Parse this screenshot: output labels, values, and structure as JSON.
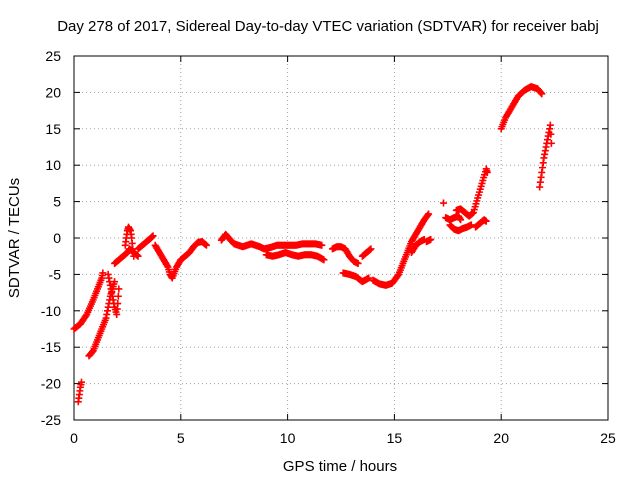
{
  "chart_data": {
    "type": "scatter",
    "title": "Day 278 of 2017, Sidereal Day-to-day VTEC variation (SDTVAR) for receiver babj",
    "xlabel": "GPS time / hours",
    "ylabel": "SDTVAR / TECUs",
    "xlim": [
      0,
      25
    ],
    "ylim": [
      -25,
      25
    ],
    "xticks": [
      "0",
      "5",
      "10",
      "15",
      "20",
      "25"
    ],
    "yticks": [
      "25",
      "20",
      "15",
      "10",
      "5",
      "0",
      "-5",
      "-10",
      "-15",
      "-20",
      "-25"
    ],
    "grid": true,
    "marker": "plus",
    "color": "#ff0000",
    "series": [
      {
        "name": "babj",
        "segments": [
          [
            [
              0.0,
              -12.5
            ],
            [
              0.3,
              -11.8
            ],
            [
              0.6,
              -10.5
            ],
            [
              0.9,
              -8.5
            ],
            [
              1.1,
              -7.0
            ],
            [
              1.3,
              -5.5
            ],
            [
              1.35,
              -4.8
            ]
          ],
          [
            [
              0.2,
              -22.5
            ],
            [
              0.25,
              -21.5
            ],
            [
              0.3,
              -20.5
            ],
            [
              0.35,
              -19.8
            ]
          ],
          [
            [
              0.7,
              -16.2
            ],
            [
              0.9,
              -15.5
            ],
            [
              1.1,
              -14.0
            ],
            [
              1.3,
              -12.5
            ],
            [
              1.5,
              -11.0
            ],
            [
              1.6,
              -9.5
            ],
            [
              1.7,
              -8.0
            ],
            [
              1.8,
              -7.0
            ],
            [
              1.9,
              -6.0
            ]
          ],
          [
            [
              1.6,
              -5.0
            ],
            [
              1.7,
              -6.5
            ],
            [
              1.8,
              -8.0
            ],
            [
              1.9,
              -9.5
            ],
            [
              2.0,
              -10.5
            ],
            [
              2.05,
              -9.0
            ],
            [
              2.1,
              -7.0
            ]
          ],
          [
            [
              1.9,
              -3.5
            ],
            [
              2.1,
              -3.0
            ],
            [
              2.3,
              -2.5
            ],
            [
              2.5,
              -2.0
            ],
            [
              2.6,
              -1.5
            ],
            [
              2.8,
              -2.0
            ],
            [
              3.0,
              -2.5
            ]
          ],
          [
            [
              2.4,
              -1.0
            ],
            [
              2.45,
              0.0
            ],
            [
              2.5,
              1.0
            ],
            [
              2.55,
              1.5
            ],
            [
              2.65,
              1.0
            ],
            [
              2.7,
              0.0
            ],
            [
              2.75,
              -1.5
            ],
            [
              2.8,
              -2.5
            ]
          ],
          [
            [
              3.0,
              -1.5
            ],
            [
              3.2,
              -1.0
            ],
            [
              3.4,
              -0.5
            ],
            [
              3.6,
              0.0
            ],
            [
              3.7,
              0.3
            ]
          ],
          [
            [
              3.8,
              -1.0
            ],
            [
              4.0,
              -2.0
            ],
            [
              4.2,
              -3.0
            ],
            [
              4.4,
              -4.0
            ],
            [
              4.5,
              -5.0
            ],
            [
              4.6,
              -5.5
            ],
            [
              4.8,
              -4.0
            ],
            [
              5.0,
              -3.0
            ],
            [
              5.2,
              -2.5
            ],
            [
              5.4,
              -2.0
            ],
            [
              5.6,
              -1.2
            ],
            [
              5.8,
              -0.6
            ],
            [
              6.0,
              -0.5
            ],
            [
              6.2,
              -1.0
            ]
          ],
          [
            [
              6.9,
              -0.3
            ],
            [
              7.1,
              0.5
            ],
            [
              7.3,
              -0.2
            ],
            [
              7.5,
              -0.8
            ],
            [
              7.7,
              -1.0
            ],
            [
              7.9,
              -1.2
            ],
            [
              8.1,
              -1.0
            ],
            [
              8.3,
              -0.8
            ],
            [
              8.5,
              -1.0
            ],
            [
              8.7,
              -1.2
            ],
            [
              8.9,
              -1.5
            ],
            [
              9.2,
              -1.3
            ],
            [
              9.5,
              -1.0
            ],
            [
              9.8,
              -1.0
            ],
            [
              10.1,
              -1.0
            ],
            [
              10.4,
              -1.0
            ],
            [
              10.7,
              -0.8
            ],
            [
              11.0,
              -0.8
            ],
            [
              11.3,
              -0.8
            ],
            [
              11.6,
              -1.0
            ]
          ],
          [
            [
              9.0,
              -2.3
            ],
            [
              9.3,
              -2.5
            ],
            [
              9.6,
              -2.3
            ],
            [
              9.9,
              -2.0
            ],
            [
              10.2,
              -2.3
            ],
            [
              10.5,
              -2.5
            ],
            [
              10.8,
              -2.3
            ],
            [
              11.1,
              -2.3
            ],
            [
              11.4,
              -2.5
            ],
            [
              11.7,
              -3.0
            ]
          ],
          [
            [
              12.1,
              -1.5
            ],
            [
              12.3,
              -1.2
            ],
            [
              12.5,
              -1.2
            ],
            [
              12.7,
              -1.5
            ],
            [
              12.9,
              -2.5
            ],
            [
              13.1,
              -3.2
            ],
            [
              13.3,
              -3.5
            ]
          ],
          [
            [
              12.6,
              -4.8
            ],
            [
              12.9,
              -5.0
            ],
            [
              13.2,
              -5.3
            ],
            [
              13.5,
              -6.0
            ],
            [
              13.8,
              -5.5
            ]
          ],
          [
            [
              13.5,
              -2.5
            ],
            [
              13.7,
              -2.0
            ],
            [
              13.9,
              -1.5
            ]
          ],
          [
            [
              14.0,
              -5.8
            ],
            [
              14.3,
              -6.3
            ],
            [
              14.6,
              -6.5
            ],
            [
              14.9,
              -6.2
            ],
            [
              15.2,
              -5.0
            ],
            [
              15.4,
              -3.5
            ],
            [
              15.6,
              -2.0
            ],
            [
              15.8,
              -0.5
            ],
            [
              16.0,
              0.5
            ],
            [
              16.2,
              1.5
            ],
            [
              16.4,
              2.5
            ],
            [
              16.6,
              3.3
            ]
          ],
          [
            [
              15.8,
              -2.0
            ],
            [
              16.0,
              -1.0
            ],
            [
              16.2,
              -0.5
            ],
            [
              16.4,
              -0.2
            ]
          ],
          [
            [
              16.5,
              -0.5
            ],
            [
              16.7,
              -0.2
            ]
          ],
          [
            [
              17.3,
              4.8
            ]
          ],
          [
            [
              17.4,
              2.8
            ],
            [
              17.6,
              2.5
            ],
            [
              17.8,
              2.8
            ],
            [
              18.0,
              3.0
            ],
            [
              18.1,
              2.5
            ]
          ],
          [
            [
              17.6,
              1.8
            ],
            [
              17.8,
              1.2
            ],
            [
              18.0,
              1.0
            ],
            [
              18.2,
              1.3
            ],
            [
              18.4,
              1.5
            ],
            [
              18.6,
              1.8
            ]
          ],
          [
            [
              17.9,
              3.8
            ],
            [
              18.1,
              4.0
            ],
            [
              18.3,
              3.5
            ],
            [
              18.5,
              3.0
            ],
            [
              18.7,
              3.5
            ],
            [
              18.9,
              5.5
            ],
            [
              19.1,
              7.5
            ],
            [
              19.3,
              9.5
            ],
            [
              19.35,
              9.0
            ]
          ],
          [
            [
              18.8,
              1.5
            ],
            [
              19.0,
              2.0
            ],
            [
              19.2,
              2.5
            ],
            [
              19.3,
              2.3
            ]
          ],
          [
            [
              20.0,
              15.0
            ],
            [
              20.2,
              16.5
            ],
            [
              20.5,
              18.0
            ],
            [
              20.8,
              19.5
            ],
            [
              21.1,
              20.3
            ],
            [
              21.4,
              20.8
            ],
            [
              21.7,
              20.5
            ],
            [
              21.9,
              19.8
            ]
          ],
          [
            [
              21.8,
              7.0
            ],
            [
              21.9,
              9.0
            ],
            [
              22.0,
              11.0
            ],
            [
              22.1,
              12.5
            ],
            [
              22.2,
              14.0
            ],
            [
              22.3,
              15.5
            ],
            [
              22.35,
              13.0
            ]
          ]
        ]
      }
    ]
  }
}
